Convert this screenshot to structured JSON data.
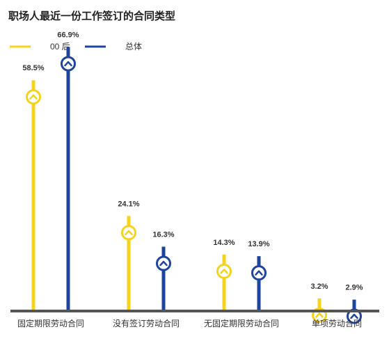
{
  "colors": {
    "series_a": "#F5D31C",
    "series_b": "#1E44A0",
    "baseline": "#555555",
    "text": "#333333"
  },
  "chart_data": {
    "type": "bar",
    "title": "职场人最近一份工作签订的合同类型",
    "categories": [
      "固定期限劳动合同",
      "没有签订劳动合同",
      "无固定期限劳动合同",
      "单项劳动合同"
    ],
    "series": [
      {
        "name": "00 后",
        "values": [
          58.5,
          24.1,
          14.3,
          3.2
        ],
        "labels": [
          "58.5%",
          "24.1%",
          "14.3%",
          "3.2%"
        ]
      },
      {
        "name": "总体",
        "values": [
          66.9,
          16.3,
          13.9,
          2.9
        ],
        "labels": [
          "66.9%",
          "16.3%",
          "13.9%",
          "2.9%"
        ]
      }
    ],
    "ylim": [
      0,
      70
    ],
    "grid": false,
    "legend_position": "top-left"
  }
}
